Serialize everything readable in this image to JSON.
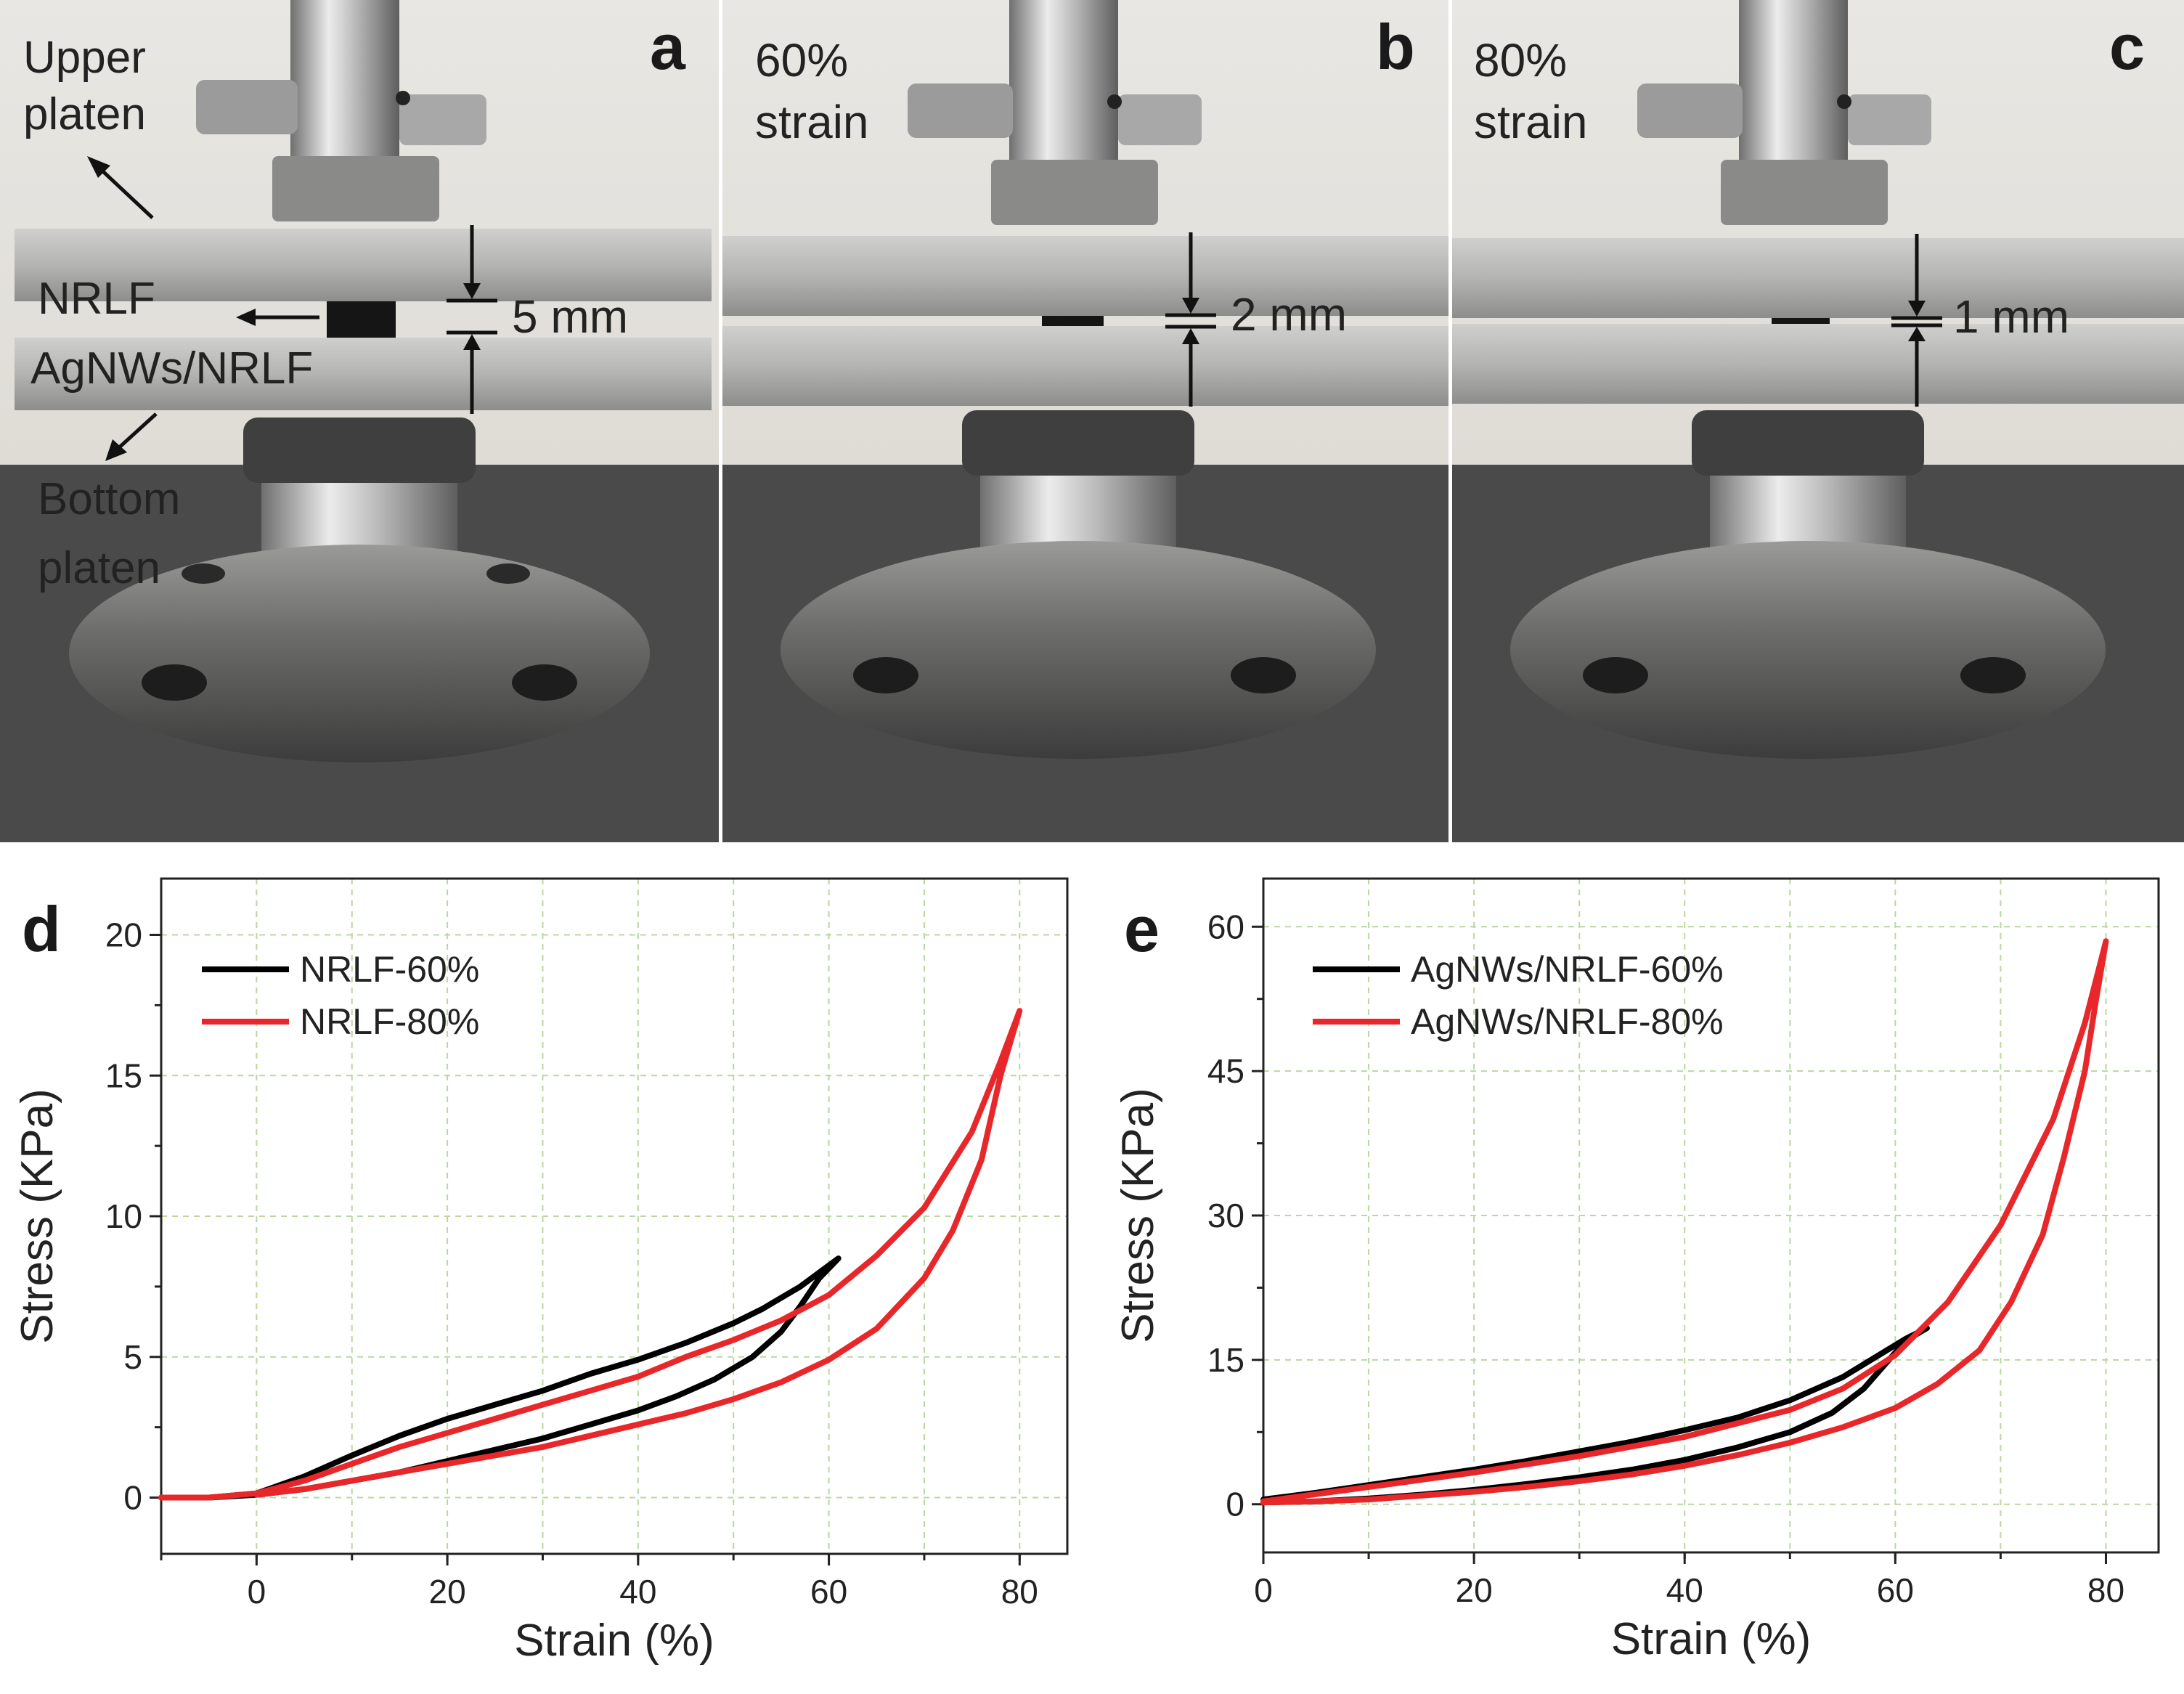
{
  "photos": [
    {
      "letter": "a",
      "gap_label": "5 mm",
      "labels": {
        "upper_platen_line1": "Upper",
        "upper_platen_line2": "platen",
        "nrlf": "NRLF",
        "agnws_nrlf": "AgNWs/NRLF",
        "bottom_platen_line1": "Bottom",
        "bottom_platen_line2": "platen"
      }
    },
    {
      "letter": "b",
      "strain_line1": "60%",
      "strain_line2": "strain",
      "gap_label": "2 mm"
    },
    {
      "letter": "c",
      "strain_line1": "80%",
      "strain_line2": "strain",
      "gap_label": "1 mm"
    }
  ],
  "chart_data": [
    {
      "panel": "d",
      "type": "line",
      "xlabel": "Strain (%)",
      "ylabel": "Stress (KPa)",
      "xlim": [
        -10,
        85
      ],
      "ylim": [
        -2,
        22
      ],
      "xticks": [
        0,
        20,
        40,
        60,
        80
      ],
      "yticks": [
        0,
        5,
        10,
        15,
        20
      ],
      "grid": true,
      "legend_position": "top-left",
      "series": [
        {
          "name": "NRLF-60%",
          "color": "#000000",
          "loading": [
            [
              -10,
              0.0
            ],
            [
              -5,
              0.0
            ],
            [
              0,
              0.15
            ],
            [
              5,
              0.75
            ],
            [
              10,
              1.5
            ],
            [
              15,
              2.2
            ],
            [
              20,
              2.8
            ],
            [
              25,
              3.3
            ],
            [
              30,
              3.8
            ],
            [
              35,
              4.4
            ],
            [
              40,
              4.9
            ],
            [
              45,
              5.5
            ],
            [
              50,
              6.2
            ],
            [
              53,
              6.7
            ],
            [
              54,
              6.9
            ],
            [
              57,
              7.5
            ],
            [
              61,
              8.5
            ]
          ],
          "unloading": [
            [
              61,
              8.5
            ],
            [
              59,
              7.8
            ],
            [
              57,
              6.8
            ],
            [
              55,
              5.9
            ],
            [
              52,
              5.0
            ],
            [
              48,
              4.2
            ],
            [
              44,
              3.6
            ],
            [
              40,
              3.1
            ],
            [
              35,
              2.6
            ],
            [
              30,
              2.1
            ],
            [
              25,
              1.7
            ],
            [
              20,
              1.3
            ],
            [
              15,
              0.9
            ],
            [
              10,
              0.6
            ],
            [
              5,
              0.3
            ],
            [
              0,
              0.1
            ],
            [
              -5,
              0.0
            ]
          ]
        },
        {
          "name": "NRLF-80%",
          "color": "#e8272a",
          "loading": [
            [
              -10,
              0.0
            ],
            [
              -5,
              0.0
            ],
            [
              0,
              0.15
            ],
            [
              5,
              0.6
            ],
            [
              10,
              1.2
            ],
            [
              15,
              1.8
            ],
            [
              20,
              2.3
            ],
            [
              25,
              2.8
            ],
            [
              30,
              3.3
            ],
            [
              35,
              3.8
            ],
            [
              40,
              4.3
            ],
            [
              45,
              5.0
            ],
            [
              50,
              5.6
            ],
            [
              55,
              6.3
            ],
            [
              60,
              7.2
            ],
            [
              65,
              8.6
            ],
            [
              70,
              10.3
            ],
            [
              75,
              13.0
            ],
            [
              78,
              15.5
            ],
            [
              80,
              17.3
            ]
          ],
          "unloading": [
            [
              80,
              17.3
            ],
            [
              78,
              15.0
            ],
            [
              76,
              12.0
            ],
            [
              73,
              9.5
            ],
            [
              70,
              7.8
            ],
            [
              65,
              6.0
            ],
            [
              60,
              4.9
            ],
            [
              55,
              4.1
            ],
            [
              50,
              3.5
            ],
            [
              45,
              3.0
            ],
            [
              40,
              2.6
            ],
            [
              35,
              2.2
            ],
            [
              30,
              1.8
            ],
            [
              25,
              1.5
            ],
            [
              20,
              1.2
            ],
            [
              15,
              0.9
            ],
            [
              10,
              0.6
            ],
            [
              5,
              0.3
            ],
            [
              0,
              0.1
            ]
          ]
        }
      ]
    },
    {
      "panel": "e",
      "type": "line",
      "xlabel": "Strain (%)",
      "ylabel": "Stress (KPa)",
      "xlim": [
        0,
        85
      ],
      "ylim": [
        -5,
        65
      ],
      "xticks": [
        0,
        20,
        40,
        60,
        80
      ],
      "yticks": [
        0,
        15,
        30,
        45,
        60
      ],
      "grid": true,
      "legend_position": "top-left",
      "series": [
        {
          "name": "AgNWs/NRLF-60%",
          "color": "#000000",
          "loading": [
            [
              0,
              0.5
            ],
            [
              5,
              1.2
            ],
            [
              10,
              2.0
            ],
            [
              15,
              2.8
            ],
            [
              20,
              3.6
            ],
            [
              25,
              4.5
            ],
            [
              30,
              5.5
            ],
            [
              35,
              6.5
            ],
            [
              40,
              7.7
            ],
            [
              45,
              9.0
            ],
            [
              50,
              10.8
            ],
            [
              55,
              13.2
            ],
            [
              58,
              15.2
            ],
            [
              61,
              17.2
            ],
            [
              63,
              18.3
            ]
          ],
          "unloading": [
            [
              63,
              18.3
            ],
            [
              61,
              17.0
            ],
            [
              59,
              14.5
            ],
            [
              57,
              12.0
            ],
            [
              54,
              9.5
            ],
            [
              50,
              7.5
            ],
            [
              45,
              5.9
            ],
            [
              40,
              4.6
            ],
            [
              35,
              3.6
            ],
            [
              30,
              2.8
            ],
            [
              25,
              2.1
            ],
            [
              20,
              1.5
            ],
            [
              15,
              1.0
            ],
            [
              10,
              0.6
            ],
            [
              5,
              0.3
            ],
            [
              0,
              0.2
            ]
          ]
        },
        {
          "name": "AgNWs/NRLF-80%",
          "color": "#e8272a",
          "loading": [
            [
              0,
              0.3
            ],
            [
              10,
              1.8
            ],
            [
              20,
              3.3
            ],
            [
              30,
              5.0
            ],
            [
              40,
              7.0
            ],
            [
              50,
              9.8
            ],
            [
              55,
              12.0
            ],
            [
              60,
              15.5
            ],
            [
              65,
              21.0
            ],
            [
              70,
              29.0
            ],
            [
              75,
              40.0
            ],
            [
              78,
              50.0
            ],
            [
              80,
              58.5
            ]
          ],
          "unloading": [
            [
              80,
              58.5
            ],
            [
              79,
              52.0
            ],
            [
              78,
              45.0
            ],
            [
              76,
              36.0
            ],
            [
              74,
              28.0
            ],
            [
              71,
              21.0
            ],
            [
              68,
              16.0
            ],
            [
              64,
              12.5
            ],
            [
              60,
              10.0
            ],
            [
              55,
              8.0
            ],
            [
              50,
              6.4
            ],
            [
              45,
              5.1
            ],
            [
              40,
              4.0
            ],
            [
              35,
              3.1
            ],
            [
              30,
              2.4
            ],
            [
              25,
              1.8
            ],
            [
              20,
              1.3
            ],
            [
              15,
              0.9
            ],
            [
              10,
              0.5
            ],
            [
              5,
              0.3
            ],
            [
              0,
              0.2
            ]
          ]
        }
      ]
    }
  ]
}
